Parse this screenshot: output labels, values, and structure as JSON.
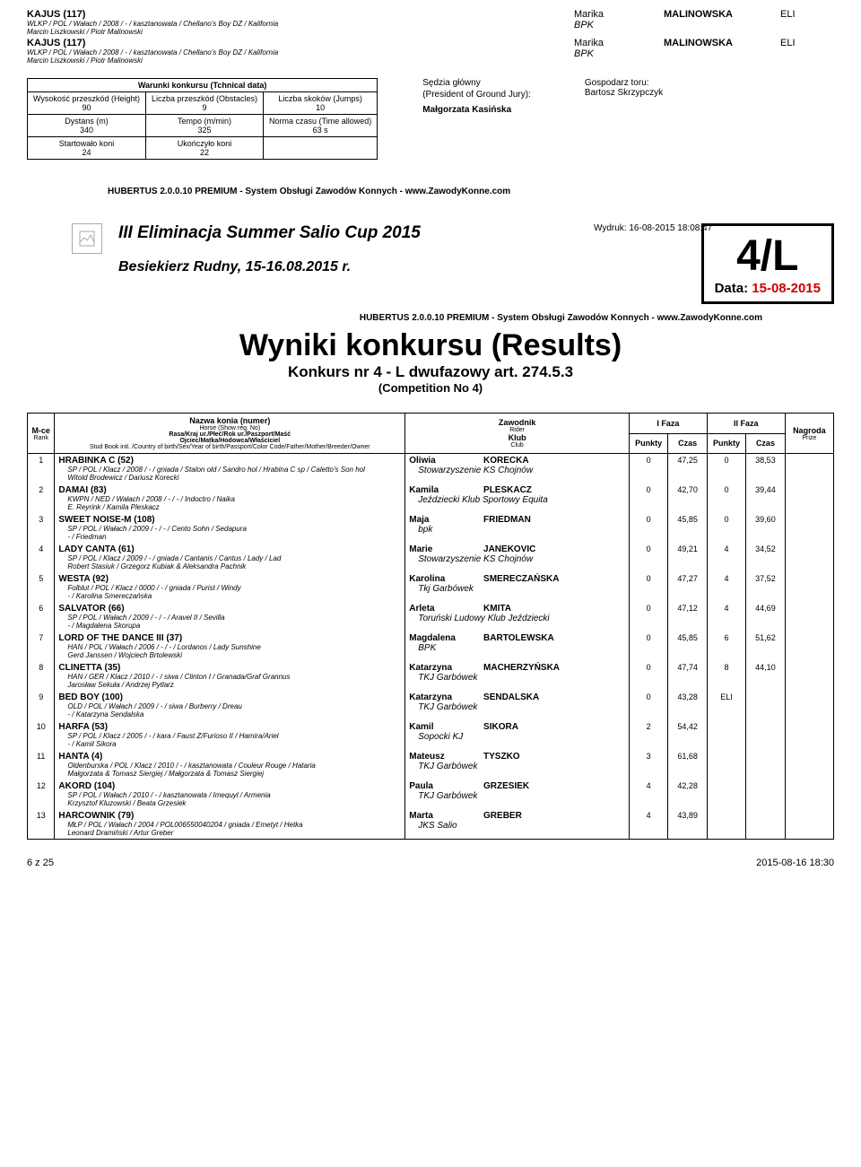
{
  "top_rows": [
    {
      "horse": "KAJUS (117)",
      "detail": "WLKP / POL / Wałach / 2008 / - / kasztanowata / Chellano's Boy DZ / Kalifornia",
      "owner": "Marcin Liszkowski / Piotr Malinowski",
      "rider_first": "Marika",
      "rider_last": "MALINOWSKA",
      "club": "BPK",
      "result": "ELI"
    },
    {
      "horse": "KAJUS (117)",
      "detail": "WLKP / POL / Wałach / 2008 / - / kasztanowata / Chellano's Boy DZ / Kalifornia",
      "owner": "Marcin Liszkowski / Piotr Malinowski",
      "rider_first": "Marika",
      "rider_last": "MALINOWSKA",
      "club": "BPK",
      "result": "ELI"
    }
  ],
  "tech": {
    "title": "Warunki konkursu (Tchnical data)",
    "height_lbl": "Wysokość przeszkód (Height)",
    "height_val": "90",
    "obst_lbl": "Liczba przeszkód (Obstacles)",
    "obst_val": "9",
    "jumps_lbl": "Liczba skoków (Jumps)",
    "jumps_val": "10",
    "dist_lbl": "Dystans (m)",
    "dist_val": "340",
    "tempo_lbl": "Tempo (m/min)",
    "tempo_val": "325",
    "time_lbl": "Norma czasu (Time allowed)",
    "time_val": "63 s",
    "start_lbl": "Startowało koni",
    "start_val": "24",
    "fin_lbl": "Ukończyło koni",
    "fin_val": "22"
  },
  "officials": {
    "judge_lbl": "Sędzia główny",
    "judge_lbl2": "(President of Ground Jury):",
    "judge_name": "Małgorzata Kasińska",
    "host_lbl": "Gospodarz toru:",
    "host_name": "Bartosz Skrzypczyk"
  },
  "credit": "HUBERTUS 2.0.0.10 PREMIUM - System Obsługi Zawodów Konnych - www.ZawodyKonne.com",
  "header": {
    "title": "III Eliminacja Summer Salio Cup 2015",
    "subtitle": "Besiekierz Rudny, 15-16.08.2015 r.",
    "print": "Wydruk: 16-08-2015 18:08:47",
    "code": "4/L",
    "date_lbl": "Data:",
    "date": "15-08-2015"
  },
  "results_title": "Wyniki konkursu (Results)",
  "results_sub": "Konkurs nr 4 - L dwufazowy art. 274.5.3",
  "results_comp": "(Competition No 4)",
  "cols": {
    "rank": "M-ce",
    "rank_sub": "Rank",
    "name": "Nazwa konia (numer)",
    "name_sub1": "Horse (Show reg. No)",
    "name_sub2": "Rasa/Kraj ur./Płeć/Rok ur./Paszport/Maść",
    "name_sub3": "Ojciec/Matka/Hodowca/Właściciel",
    "name_sub4": "Stud Book init. /Country of birth/Sex/Year of birth/Passport/Color Code/Father/Mother/Breeder/Owner",
    "zaw": "Zawodnik",
    "zaw_sub1": "Rider",
    "zaw_sub2": "Klub",
    "zaw_sub3": "Club",
    "f1": "I Faza",
    "f2": "II Faza",
    "pkt": "Punkty",
    "czas": "Czas",
    "nagroda": "Nagroda",
    "nagroda_sub": "Prize"
  },
  "rows": [
    {
      "rank": "1",
      "horse": "HRABINKA C (52)",
      "det": "SP / POL / Klacz / 2008 / - / gniada / Stalon old / Sandro hol / Hrabina C sp / Caletto's Son hol",
      "own": "Witold Brodewicz / Dariusz Korecki",
      "rf": "Oliwia",
      "rl": "KORECKA",
      "club": "Stowarzyszenie KS Chojnów",
      "p1": "0",
      "c1": "47,25",
      "p2": "0",
      "c2": "38,53"
    },
    {
      "rank": "2",
      "horse": "DAMAI (83)",
      "det": "KWPN / NED / Wałach / 2008 / - / - / Indoctro / Naika",
      "own": "E. Reyrink / Kamila Pleskacz",
      "rf": "Kamila",
      "rl": "PLESKACZ",
      "club": "Jeździecki Klub Sportowy Equita",
      "p1": "0",
      "c1": "42,70",
      "p2": "0",
      "c2": "39,44"
    },
    {
      "rank": "3",
      "horse": "SWEET NOISE-M (108)",
      "det": "SP / POL / Wałach / 2009 / - / - / Cento Sohn / Sedapura",
      "own": "- / Friedman",
      "rf": "Maja",
      "rl": "FRIEDMAN",
      "club": "bpk",
      "p1": "0",
      "c1": "45,85",
      "p2": "0",
      "c2": "39,60"
    },
    {
      "rank": "4",
      "horse": "LADY CANTA (61)",
      "det": "SP / POL / Klacz / 2009 / - / gniada / Cantanis / Cantus / Lady / Lad",
      "own": "Robert Stasiuk / Grzegorz Kubiak & Aleksandra Pachnik",
      "rf": "Marie",
      "rl": "JANEKOVIC",
      "club": "Stowarzyszenie KS Chojnów",
      "p1": "0",
      "c1": "49,21",
      "p2": "4",
      "c2": "34,52"
    },
    {
      "rank": "5",
      "horse": "WESTA (92)",
      "det": "Folblut / POL / Klacz / 0000 / - / gniada / Purist / Windy",
      "own": "- / Karolina Smereczańska",
      "rf": "Karolina",
      "rl": "SMERECZAŃSKA",
      "club": "Tkj Garbówek",
      "p1": "0",
      "c1": "47,27",
      "p2": "4",
      "c2": "37,52"
    },
    {
      "rank": "6",
      "horse": "SALVATOR (66)",
      "det": "SP / POL / Wałach / 2009 / - / - / Aravel II / Sevilla",
      "own": "- / Magdalena Skorupa",
      "rf": "Arleta",
      "rl": "KMITA",
      "club": "Toruński Ludowy Klub Jeździecki",
      "p1": "0",
      "c1": "47,12",
      "p2": "4",
      "c2": "44,69"
    },
    {
      "rank": "7",
      "horse": "LORD OF THE DANCE III (37)",
      "det": "HAN / POL / Wałach / 2006 / - / - / Lordanos / Lady Sunshine",
      "own": "Gerd Janssen / Wojciech Brtolewski",
      "rf": "Magdalena",
      "rl": "BARTOLEWSKA",
      "club": "BPK",
      "p1": "0",
      "c1": "45,85",
      "p2": "6",
      "c2": "51,62"
    },
    {
      "rank": "8",
      "horse": "CLINETTA (35)",
      "det": "HAN / GER / Klacz / 2010 / - / siwa / Clinton I / Granada/Graf Grannus",
      "own": "Jarosław Sekuła / Andrzej Pytlarz",
      "rf": "Katarzyna",
      "rl": "MACHERZYŃSKA",
      "club": "TKJ Garbówek",
      "p1": "0",
      "c1": "47,74",
      "p2": "8",
      "c2": "44,10"
    },
    {
      "rank": "9",
      "horse": "BED BOY (100)",
      "det": "OLD / POL / Wałach / 2009 / - / siwa / Burberry / Dreau",
      "own": "- / Katarzyna Sendalska",
      "rf": "Katarzyna",
      "rl": "SENDALSKA",
      "club": "TKJ Garbówek",
      "p1": "0",
      "c1": "43,28",
      "p2": "ELI",
      "c2": ""
    },
    {
      "rank": "10",
      "horse": "HARFA (53)",
      "det": "SP / POL / Klacz / 2005 / - / kara / Faust Z/Furioso II / Hamira/Ariel",
      "own": "- / Kamil Sikora",
      "rf": "Kamil",
      "rl": "SIKORA",
      "club": "Sopocki KJ",
      "p1": "2",
      "c1": "54,42",
      "p2": "",
      "c2": ""
    },
    {
      "rank": "11",
      "horse": "HANTA (4)",
      "det": "Oldenburska / POL / Klacz / 2010 / - / kasztanowata / Couleur Rouge / Hataria",
      "own": "Małgorzata & Tomasz Siergiej / Małgorzata & Tomasz Siergiej",
      "rf": "Mateusz",
      "rl": "TYSZKO",
      "club": "TKJ Garbówek",
      "p1": "3",
      "c1": "61,68",
      "p2": "",
      "c2": ""
    },
    {
      "rank": "12",
      "horse": "AKORD (104)",
      "det": "SP / POL / Wałach / 2010 / - / kasztanowata / Imequyl / Armenia",
      "own": "Krzysztof Kluzowski / Beata Grzesiek",
      "rf": "Paula",
      "rl": "GRZESIEK",
      "club": "TKJ Garbówek",
      "p1": "4",
      "c1": "42,28",
      "p2": "",
      "c2": ""
    },
    {
      "rank": "13",
      "horse": "HARCOWNIK (79)",
      "det": "MŁP / POL / Wałach / 2004 / POL006550040204 / gniada / Emetyt / Hetka",
      "own": "Leonard Dramiński / Artur Greber",
      "rf": "Marta",
      "rl": "GREBER",
      "club": "JKS Salio",
      "p1": "4",
      "c1": "43,89",
      "p2": "",
      "c2": ""
    }
  ],
  "footer": {
    "left": "6 z 25",
    "right": "2015-08-16 18:30"
  }
}
